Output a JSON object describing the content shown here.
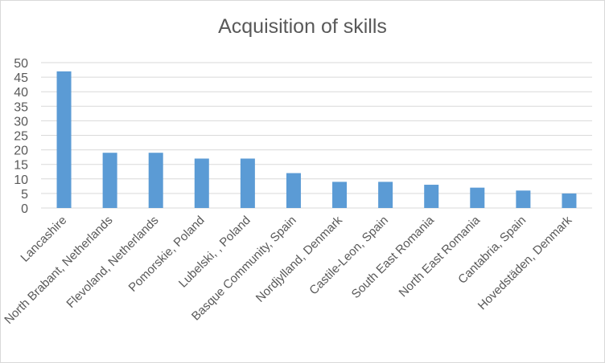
{
  "chart_data": {
    "type": "bar",
    "title": "Acquisition of skills",
    "xlabel": "",
    "ylabel": "",
    "categories": [
      "Lancashire",
      "North Brabant, Netherlands",
      "Flevoland, Netherlands",
      "Pomorskie, Poland",
      "Lubelski, , Poland",
      "Basque Community, Spain",
      "Nordjylland, Denmark",
      "Castile-Leon, Spain",
      "South East Romania",
      "North East Romania",
      "Cantabria, Spain",
      "Hovedstäden, Denmark"
    ],
    "values": [
      47,
      19,
      19,
      17,
      17,
      12,
      9,
      9,
      8,
      7,
      6,
      5
    ],
    "ylim": [
      0,
      50
    ],
    "yticks": [
      0,
      5,
      10,
      15,
      20,
      25,
      30,
      35,
      40,
      45,
      50
    ],
    "grid": true,
    "legend": "none",
    "colors": {
      "bar": "#5b9bd5",
      "grid": "#d9d9d9",
      "text": "#595959"
    }
  }
}
